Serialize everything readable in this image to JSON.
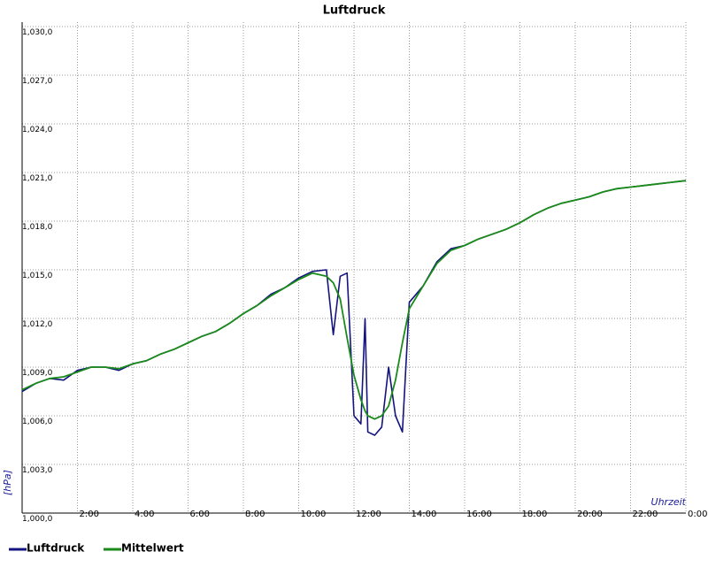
{
  "chart_data": {
    "type": "line",
    "title": "Luftdruck",
    "y_label": "[hPa]",
    "x_label": "Uhrzeit",
    "x": [
      0,
      0.5,
      1,
      1.5,
      2,
      2.5,
      3,
      3.5,
      4,
      4.5,
      5,
      5.5,
      6,
      6.5,
      7,
      7.5,
      8,
      8.5,
      9,
      9.5,
      10,
      10.5,
      11,
      11.25,
      11.5,
      11.75,
      12,
      12.25,
      12.4,
      12.5,
      12.75,
      13,
      13.25,
      13.5,
      13.75,
      14,
      14.5,
      15,
      15.5,
      16,
      16.5,
      17,
      17.5,
      18,
      18.5,
      19,
      19.5,
      20,
      20.5,
      21,
      21.5,
      22,
      22.5,
      23,
      23.5,
      24
    ],
    "series": [
      {
        "name": "Luftdruck",
        "color": "#14147f",
        "values": [
          1007.5,
          1008.0,
          1008.3,
          1008.2,
          1008.8,
          1009.0,
          1009.0,
          1008.8,
          1009.2,
          1009.4,
          1009.8,
          1010.1,
          1010.5,
          1010.9,
          1011.2,
          1011.7,
          1012.3,
          1012.8,
          1013.5,
          1013.9,
          1014.5,
          1014.9,
          1015.0,
          1011.0,
          1014.6,
          1014.8,
          1006.0,
          1005.5,
          1012.0,
          1005.0,
          1004.8,
          1005.3,
          1009.0,
          1006.0,
          1005.0,
          1013.0,
          1014.0,
          1015.5,
          1016.3,
          1016.5,
          1016.9,
          1017.2,
          1017.5,
          1017.9,
          1018.4,
          1018.8,
          1019.1,
          1019.3,
          1019.5,
          1019.8,
          1020.0,
          1020.1,
          1020.2,
          1020.3,
          1020.4,
          1020.5
        ]
      },
      {
        "name": "Mittelwert",
        "color": "#1a8a1a",
        "values": [
          1007.6,
          1008.0,
          1008.3,
          1008.4,
          1008.7,
          1009.0,
          1009.0,
          1008.9,
          1009.2,
          1009.4,
          1009.8,
          1010.1,
          1010.5,
          1010.9,
          1011.2,
          1011.7,
          1012.3,
          1012.8,
          1013.4,
          1013.9,
          1014.4,
          1014.8,
          1014.6,
          1014.2,
          1013.2,
          1010.8,
          1008.5,
          1007.0,
          1006.3,
          1006.0,
          1005.8,
          1006.0,
          1006.6,
          1008.2,
          1010.5,
          1012.6,
          1014.0,
          1015.4,
          1016.2,
          1016.5,
          1016.9,
          1017.2,
          1017.5,
          1017.9,
          1018.4,
          1018.8,
          1019.1,
          1019.3,
          1019.5,
          1019.8,
          1020.0,
          1020.1,
          1020.2,
          1020.3,
          1020.4,
          1020.5
        ]
      }
    ],
    "xlim": [
      0,
      24
    ],
    "xticks": [
      {
        "value": 2,
        "label": "2:00"
      },
      {
        "value": 4,
        "label": "4:00"
      },
      {
        "value": 6,
        "label": "6:00"
      },
      {
        "value": 8,
        "label": "8:00"
      },
      {
        "value": 10,
        "label": "10:00"
      },
      {
        "value": 12,
        "label": "12:00"
      },
      {
        "value": 14,
        "label": "14:00"
      },
      {
        "value": 16,
        "label": "16:00"
      },
      {
        "value": 18,
        "label": "18:00"
      },
      {
        "value": 20,
        "label": "20:00"
      },
      {
        "value": 22,
        "label": "22:00"
      },
      {
        "value": 24,
        "label": "0:00"
      }
    ],
    "ylim": [
      1000,
      1030
    ],
    "yticks": [
      {
        "value": 1000,
        "label": "1,000,0"
      },
      {
        "value": 1003,
        "label": "1,003,0"
      },
      {
        "value": 1006,
        "label": "1,006,0"
      },
      {
        "value": 1009,
        "label": "1,009,0"
      },
      {
        "value": 1012,
        "label": "1,012,0"
      },
      {
        "value": 1015,
        "label": "1,015,0"
      },
      {
        "value": 1018,
        "label": "1,018,0"
      },
      {
        "value": 1021,
        "label": "1,021,0"
      },
      {
        "value": 1024,
        "label": "1,024,0"
      },
      {
        "value": 1027,
        "label": "1,027,0"
      },
      {
        "value": 1030,
        "label": "1,030,0"
      }
    ],
    "grid": true,
    "legend": "bottom"
  }
}
